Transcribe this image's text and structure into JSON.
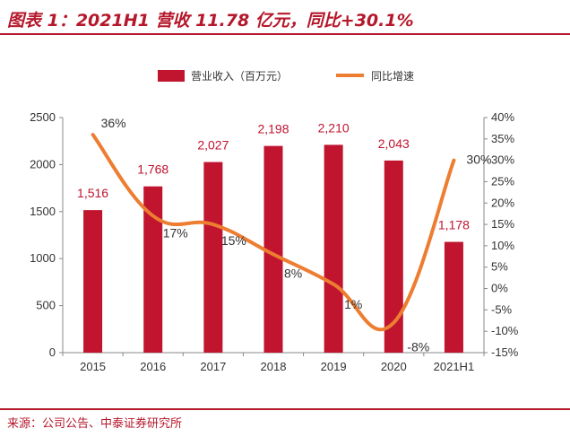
{
  "header": {
    "title": "图表 1：2021H1 营收 11.78 亿元，同比+30.1%"
  },
  "footer": {
    "source": "来源：公司公告、中泰证券研究所"
  },
  "chart_data": {
    "type": "bar",
    "categories": [
      "2015",
      "2016",
      "2017",
      "2018",
      "2019",
      "2020",
      "2021H1"
    ],
    "series": [
      {
        "name": "营业收入（百万元）",
        "type": "bar",
        "axis": "left",
        "values": [
          1516,
          1768,
          2027,
          2198,
          2210,
          2043,
          1178
        ],
        "labels": [
          "1,516",
          "1,768",
          "2,027",
          "2,198",
          "2,210",
          "2,043",
          "1,178"
        ]
      },
      {
        "name": "同比增速",
        "type": "line",
        "axis": "right",
        "values": [
          36,
          17,
          15,
          8,
          1,
          -8,
          30
        ],
        "labels": [
          "36%",
          "17%",
          "15%",
          "8%",
          "1%",
          "-8%",
          "30%"
        ]
      }
    ],
    "y_left": {
      "min": 0,
      "max": 2500,
      "ticks": [
        0,
        500,
        1000,
        1500,
        2000,
        2500
      ]
    },
    "y_right": {
      "min": -15,
      "max": 40,
      "ticks": [
        "-15%",
        "-10%",
        "-5%",
        "0%",
        "5%",
        "10%",
        "15%",
        "20%",
        "25%",
        "30%",
        "35%",
        "40%"
      ]
    },
    "legend_position": "top",
    "grid": false,
    "colors": {
      "bar": "#c0142f",
      "line": "#ed7d31"
    }
  }
}
